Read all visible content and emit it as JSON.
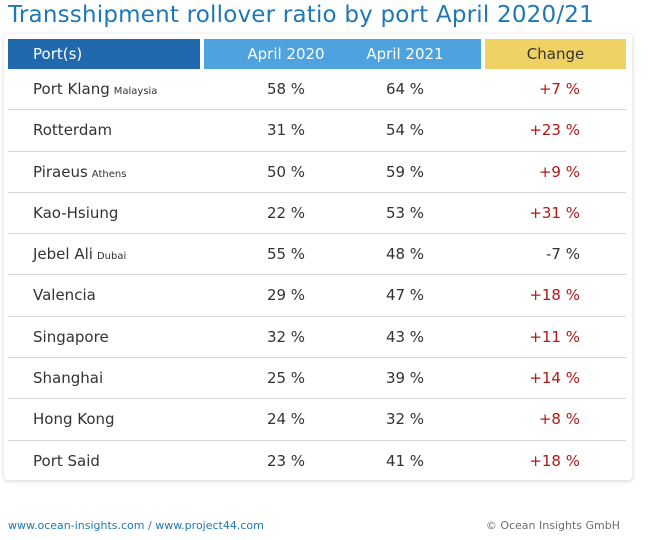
{
  "title": "Transshipment rollover ratio by port April 2020/21",
  "footer": {
    "sources": "www.ocean-insights.com / www.project44.com",
    "copyright": "© Ocean Insights GmbH"
  },
  "colors": {
    "title": "#1f77b4",
    "header_port": "#2169ad",
    "header_years": "#4ea2dd",
    "header_change": "#f0d264",
    "positive_change": "#b01818"
  },
  "chart_data": {
    "type": "table",
    "title": "Transshipment rollover ratio by port April 2020/21",
    "columns": [
      "Port(s)",
      "April 2020",
      "April 2021",
      "Change"
    ],
    "rows": [
      {
        "port": "Port Klang",
        "sub": "Malaysia",
        "apr2020": "58 %",
        "apr2021": "64 %",
        "change": "+7 %",
        "positive": true
      },
      {
        "port": "Rotterdam",
        "sub": "",
        "apr2020": "31 %",
        "apr2021": "54 %",
        "change": "+23 %",
        "positive": true
      },
      {
        "port": "Piraeus",
        "sub": "Athens",
        "apr2020": "50 %",
        "apr2021": "59 %",
        "change": "+9 %",
        "positive": true
      },
      {
        "port": "Kao-Hsiung",
        "sub": "",
        "apr2020": "22 %",
        "apr2021": "53 %",
        "change": "+31 %",
        "positive": true
      },
      {
        "port": "Jebel Ali",
        "sub": "Dubai",
        "apr2020": "55 %",
        "apr2021": "48 %",
        "change": "-7 %",
        "positive": false
      },
      {
        "port": "Valencia",
        "sub": "",
        "apr2020": "29 %",
        "apr2021": "47 %",
        "change": "+18 %",
        "positive": true
      },
      {
        "port": "Singapore",
        "sub": "",
        "apr2020": "32 %",
        "apr2021": "43 %",
        "change": "+11 %",
        "positive": true
      },
      {
        "port": "Shanghai",
        "sub": "",
        "apr2020": "25 %",
        "apr2021": "39 %",
        "change": "+14 %",
        "positive": true
      },
      {
        "port": "Hong Kong",
        "sub": "",
        "apr2020": "24 %",
        "apr2021": "32 %",
        "change": "+8 %",
        "positive": true
      },
      {
        "port": "Port Said",
        "sub": "",
        "apr2020": "23 %",
        "apr2021": "41 %",
        "change": "+18 %",
        "positive": true
      }
    ]
  }
}
